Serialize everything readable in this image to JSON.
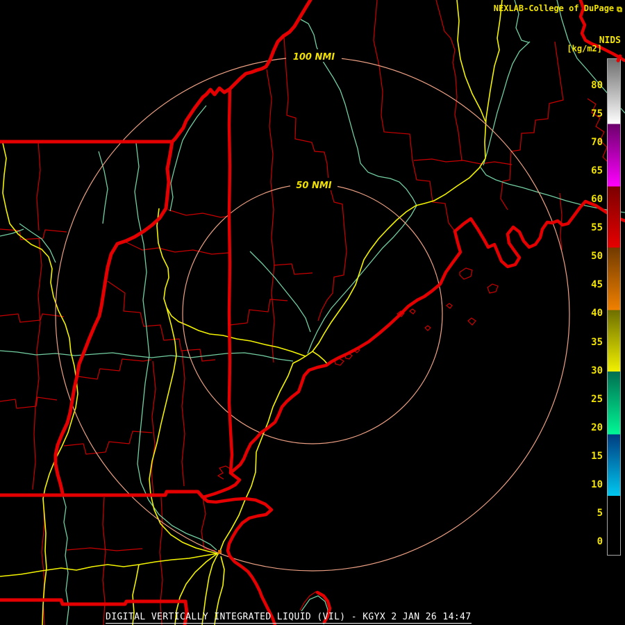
{
  "header": {
    "source": "NEXLAB-College of DuPage",
    "logo_icon": "⧉"
  },
  "colorbar": {
    "label": "NIDS",
    "units": "[kg/m2]",
    "tick_values": [
      "80",
      "75",
      "70",
      "65",
      "60",
      "55",
      "50",
      "45",
      "40",
      "35",
      "30",
      "25",
      "20",
      "15",
      "10",
      "5",
      "0"
    ],
    "tick_start_y": 123,
    "tick_spacing": 41.06,
    "segments": [
      {
        "from": "#6e6e6e",
        "to": "#ffffff",
        "start": 0,
        "end": 13.1
      },
      {
        "from": "#6c006c",
        "to": "#ff00ff",
        "start": 13.1,
        "end": 25.7
      },
      {
        "from": "#7c0000",
        "to": "#e60000",
        "start": 25.7,
        "end": 38.0
      },
      {
        "from": "#713a00",
        "to": "#f08000",
        "start": 38.0,
        "end": 50.6
      },
      {
        "from": "#6e6e00",
        "to": "#f0f000",
        "start": 50.6,
        "end": 63.0
      },
      {
        "from": "#006e50",
        "to": "#00f896",
        "start": 63.0,
        "end": 75.7
      },
      {
        "from": "#003c80",
        "to": "#00c8f0",
        "start": 75.7,
        "end": 88.1
      },
      {
        "from": "#000000",
        "to": "#000000",
        "start": 88.1,
        "end": 100
      }
    ]
  },
  "rings": {
    "outer_label": "100 NMI",
    "inner_label": "50 NMI"
  },
  "footer": {
    "caption": "DIGITAL VERTICALLY INTEGRATED LIQUID (VIL) - KGYX 2 JAN 26 14:47"
  },
  "palette": {
    "background": "#000000",
    "county_lines": "#cc0000",
    "state_borders_coastline": "#e40000",
    "interstate_highways": "#f4f400",
    "rivers_us_routes": "#72cfa2",
    "range_rings": "#f0a285",
    "text_yellow": "#f2e400",
    "text_white": "#ffffff"
  }
}
